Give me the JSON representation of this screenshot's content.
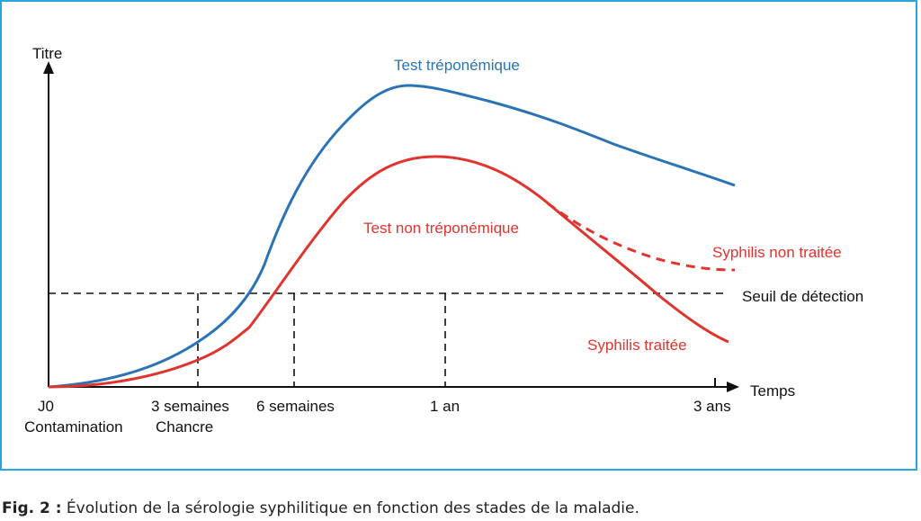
{
  "figure": {
    "border_color": "#29a6df",
    "caption_prefix": "Fig. 2 :",
    "caption_text": " Évolution de la sérologie syphilitique en fonction des stades de la maladie."
  },
  "chart_data": {
    "type": "line",
    "title": "",
    "ylabel": "Titre",
    "xlabel": "Temps",
    "x_ticks": [
      {
        "label": "J0",
        "sublabel": "Contamination"
      },
      {
        "label": "3 semaines",
        "sublabel": "Chancre"
      },
      {
        "label": "6 semaines",
        "sublabel": ""
      },
      {
        "label": "1 an",
        "sublabel": ""
      },
      {
        "label": "3 ans",
        "sublabel": ""
      }
    ],
    "threshold": {
      "label": "Seuil de détection",
      "level": 0.3
    },
    "series": [
      {
        "name": "Test tréponémique",
        "color": "#2a74b5",
        "style": "solid",
        "values": [
          [
            0,
            0
          ],
          [
            0.07,
            0.02
          ],
          [
            0.2,
            0.13
          ],
          [
            0.27,
            0.24
          ],
          [
            0.33,
            0.42
          ],
          [
            0.38,
            0.68
          ],
          [
            0.44,
            0.86
          ],
          [
            0.51,
            0.93
          ],
          [
            0.58,
            0.9
          ],
          [
            0.66,
            0.83
          ],
          [
            0.76,
            0.73
          ],
          [
            0.85,
            0.67
          ],
          [
            1,
            0.6
          ]
        ]
      },
      {
        "name": "Test non tréponémique",
        "color": "#e0342e",
        "style": "solid",
        "values": [
          [
            0,
            0
          ],
          [
            0.1,
            0.01
          ],
          [
            0.2,
            0.06
          ],
          [
            0.26,
            0.12
          ],
          [
            0.32,
            0.26
          ],
          [
            0.38,
            0.44
          ],
          [
            0.44,
            0.64
          ],
          [
            0.51,
            0.71
          ],
          [
            0.58,
            0.69
          ],
          [
            0.65,
            0.6
          ],
          [
            0.72,
            0.45
          ],
          [
            0.8,
            0.28
          ],
          [
            0.88,
            0.14
          ],
          [
            0.92,
            0.09
          ]
        ]
      },
      {
        "name": "Syphilis non traitée",
        "color": "#e0342e",
        "style": "dashed",
        "values": [
          [
            0.7,
            0.5
          ],
          [
            0.76,
            0.42
          ],
          [
            0.82,
            0.36
          ],
          [
            0.88,
            0.33
          ],
          [
            0.93,
            0.32
          ]
        ]
      }
    ],
    "series_labels": {
      "treponemal": "Test tréponémique",
      "non_treponemal": "Test non tréponémique",
      "untreated": "Syphilis non traitée",
      "treated": "Syphilis traitée"
    },
    "grid": false
  }
}
